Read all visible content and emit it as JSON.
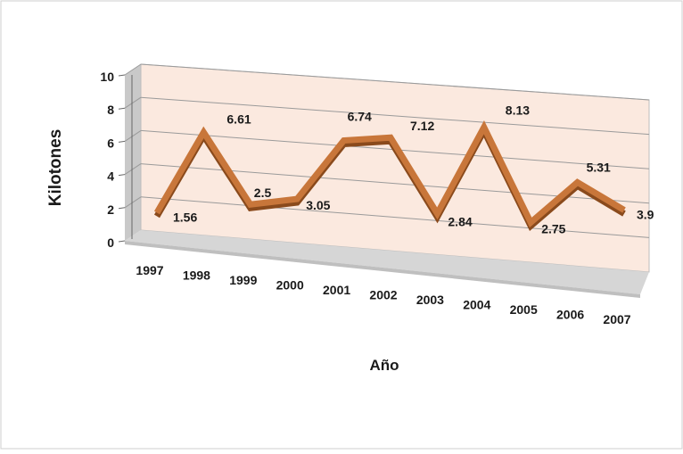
{
  "chart_data": {
    "type": "line",
    "title": "",
    "xlabel": "Año",
    "ylabel": "Kilotones",
    "categories": [
      "1997",
      "1998",
      "1999",
      "2000",
      "2001",
      "2002",
      "2003",
      "2004",
      "2005",
      "2006",
      "2007"
    ],
    "values": [
      1.56,
      6.61,
      2.5,
      3.05,
      6.74,
      7.12,
      2.84,
      8.13,
      2.75,
      5.31,
      3.9
    ],
    "value_labels": [
      "1.56",
      "6.61",
      "2.5",
      "3.05",
      "6.74",
      "7.12",
      "2.84",
      "8.13",
      "2.75",
      "5.31",
      "3.9"
    ],
    "yticks": [
      "0",
      "2",
      "4",
      "6",
      "8",
      "10"
    ],
    "ylim": [
      0,
      10
    ],
    "grid": true,
    "legend": "none",
    "style": "3d-line",
    "colors": {
      "line": "#c8763a",
      "line_shadow": "#8a4a1c",
      "plot_wall": "#fbe9df",
      "side_wall": "#c9c9c9",
      "floor": "#d6d6d6",
      "grid": "#9a9a9a"
    }
  }
}
